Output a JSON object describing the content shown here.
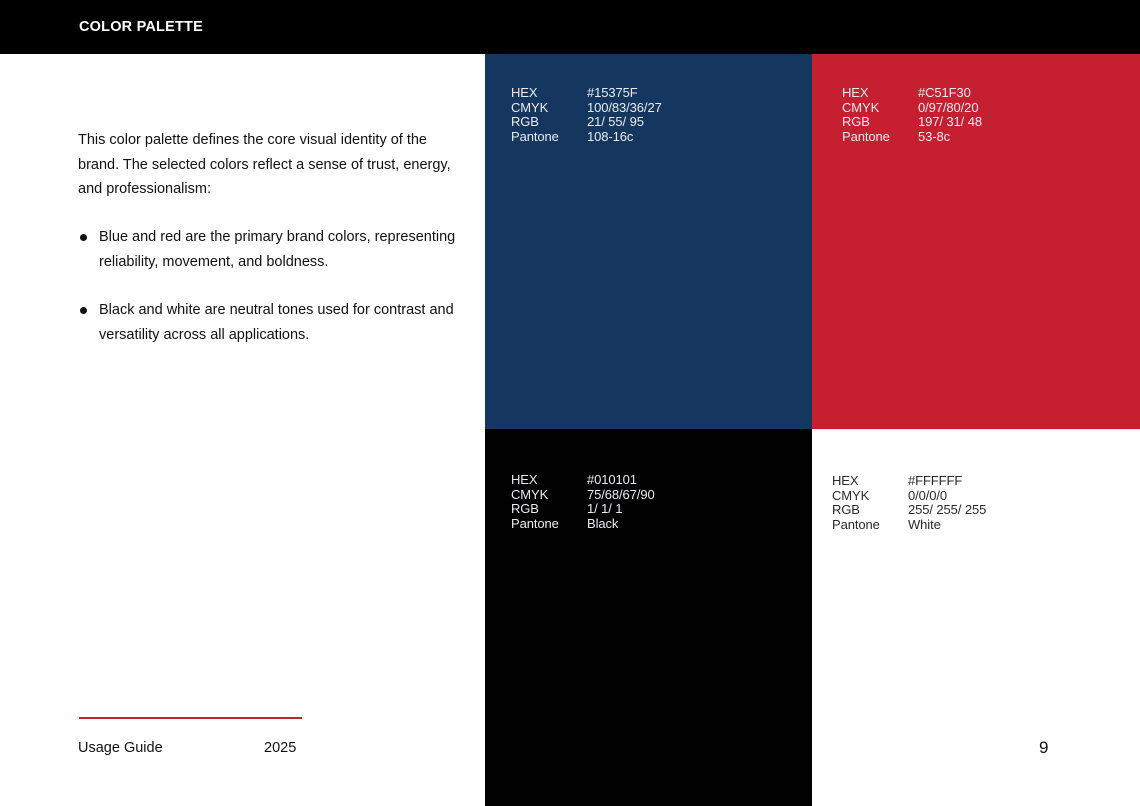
{
  "header": {
    "title": "COLOR PALETTE"
  },
  "intro": "This color palette defines the core visual identity of the brand. The selected colors reflect a sense of trust, energy, and professionalism:",
  "bullets": [
    "Blue and red are the primary brand colors, representing reliability, movement, and boldness.",
    "Black and white are neutral tones used for contrast and versatility across all applications."
  ],
  "spec_labels": {
    "hex": "HEX",
    "cmyk": "CMYK",
    "rgb": "RGB",
    "pantone": "Pantone"
  },
  "swatches": [
    {
      "name": "blue",
      "color": "#15375F",
      "hex": "#15375F",
      "cmyk": "100/83/36/27",
      "rgb": "21/ 55/ 95",
      "pantone": "108-16c"
    },
    {
      "name": "red",
      "color": "#C51F30",
      "hex": "#C51F30",
      "cmyk": "0/97/80/20",
      "rgb": "197/ 31/ 48",
      "pantone": "53-8c"
    },
    {
      "name": "black",
      "color": "#010101",
      "hex": "#010101",
      "cmyk": "75/68/67/90",
      "rgb": "1/ 1/ 1",
      "pantone": "Black"
    },
    {
      "name": "white",
      "color": "#FFFFFF",
      "hex": "#FFFFFF",
      "cmyk": "0/0/0/0",
      "rgb": "255/ 255/ 255",
      "pantone": "White"
    }
  ],
  "footer": {
    "label": "Usage Guide",
    "year": "2025",
    "page_number": "9"
  },
  "colors": {
    "accent": "#C51F30",
    "header_bg": "#000000"
  }
}
